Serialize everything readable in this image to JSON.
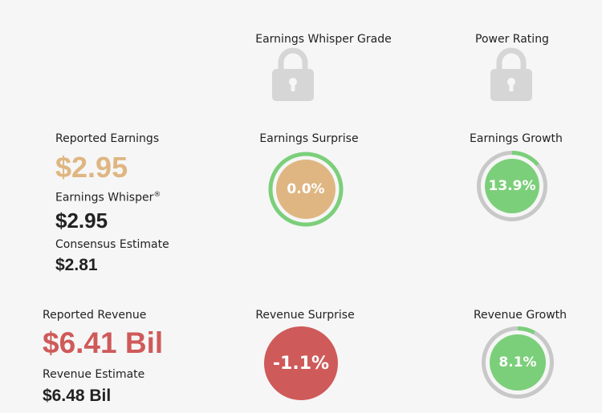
{
  "grades": {
    "whisper_grade_label": "Earnings Whisper Grade",
    "power_rating_label": "Power Rating"
  },
  "earnings": {
    "reported_label": "Reported Earnings",
    "reported_value": "$2.95",
    "whisper_label": "Earnings Whisper",
    "whisper_mark": "®",
    "whisper_value": "$2.95",
    "consensus_label": "Consensus Estimate",
    "consensus_value": "$2.81"
  },
  "earnings_surprise": {
    "label": "Earnings Surprise",
    "value": "0.0%",
    "fill_color": "#dfb682",
    "ring_color": "#7ccf7a"
  },
  "earnings_growth": {
    "label": "Earnings Growth",
    "value": "13.9%",
    "progress_pct": 13.9,
    "fill_color": "#7ccf7a",
    "ring_color": "#c8c8c8",
    "progress_color": "#7ccf7a"
  },
  "revenue": {
    "reported_label": "Reported Revenue",
    "reported_value": "$6.41 Bil",
    "estimate_label": "Revenue Estimate",
    "estimate_value": "$6.48 Bil"
  },
  "revenue_surprise": {
    "label": "Revenue Surprise",
    "value": "-1.1%",
    "fill_color": "#cf5a5a"
  },
  "revenue_growth": {
    "label": "Revenue Growth",
    "value": "8.1%",
    "progress_pct": 8.1,
    "fill_color": "#7ccf7a",
    "ring_color": "#c8c8c8",
    "progress_color": "#7ccf7a"
  },
  "colors": {
    "lock": "#d6d6d6",
    "tan": "#dfb682",
    "red": "#cf5a5a",
    "green": "#7ccf7a"
  }
}
